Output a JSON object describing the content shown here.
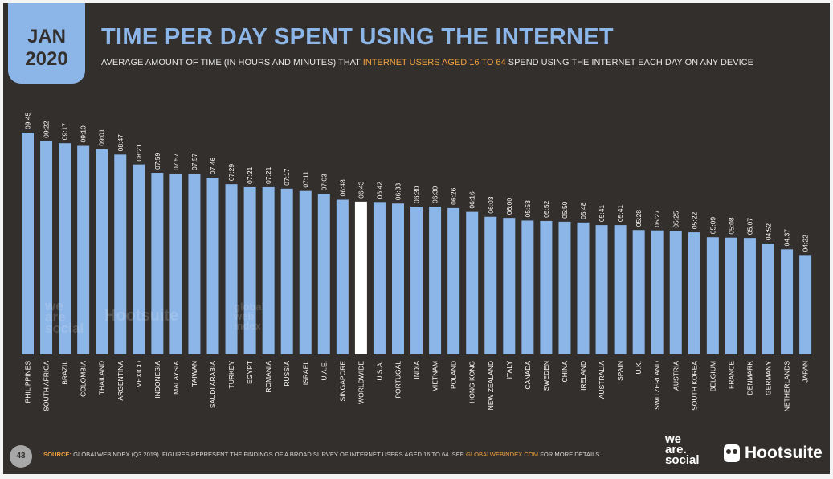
{
  "header": {
    "date_line1": "JAN",
    "date_line2": "2020",
    "title": "TIME PER DAY SPENT USING THE INTERNET",
    "subtitle_pre": "AVERAGE AMOUNT OF TIME (IN HOURS AND MINUTES) THAT ",
    "subtitle_highlight": "INTERNET USERS AGED 16 TO 64",
    "subtitle_post": " SPEND USING THE INTERNET EACH DAY ON ANY DEVICE"
  },
  "colors": {
    "background": "#322f2c",
    "bar": "#8cb5e8",
    "highlight_bar": "#ffffff",
    "accent": "#f0a03c",
    "text": "#e6e6e6"
  },
  "chart_data": {
    "type": "bar",
    "title": "TIME PER DAY SPENT USING THE INTERNET",
    "unit": "hours:minutes",
    "ylim_minutes": [
      0,
      600
    ],
    "categories": [
      "PHILIPPINES",
      "SOUTH AFRICA",
      "BRAZIL",
      "COLOMBIA",
      "THAILAND",
      "ARGENTINA",
      "MEXICO",
      "INDONESIA",
      "MALAYSIA",
      "TAIWAN",
      "SAUDI ARABIA",
      "TURKEY",
      "EGYPT",
      "ROMANIA",
      "RUSSIA",
      "ISRAEL",
      "U.A.E.",
      "SINGAPORE",
      "WORLDWIDE",
      "U.S.A.",
      "PORTUGAL",
      "INDIA",
      "VIETNAM",
      "POLAND",
      "HONG KONG",
      "NEW ZEALAND",
      "ITALY",
      "CANADA",
      "SWEDEN",
      "CHINA",
      "IRELAND",
      "AUSTRALIA",
      "SPAIN",
      "U.K.",
      "SWITZERLAND",
      "AUSTRIA",
      "SOUTH KOREA",
      "BELGIUM",
      "FRANCE",
      "DENMARK",
      "GERMANY",
      "NETHERLANDS",
      "JAPAN"
    ],
    "labels": [
      "09:45",
      "09:22",
      "09:17",
      "09:10",
      "09:01",
      "08:47",
      "08:21",
      "07:59",
      "07:57",
      "07:57",
      "07:46",
      "07:29",
      "07:21",
      "07:21",
      "07:17",
      "07:11",
      "07:03",
      "06:48",
      "06:43",
      "06:42",
      "06:38",
      "06:30",
      "06:30",
      "06:26",
      "06:16",
      "06:03",
      "06:00",
      "05:53",
      "05:52",
      "05:50",
      "05:48",
      "05:41",
      "05:41",
      "05:28",
      "05:27",
      "05:25",
      "05:22",
      "05:09",
      "05:08",
      "05:07",
      "04:52",
      "04:37",
      "04:22"
    ],
    "values_minutes": [
      585,
      562,
      557,
      550,
      541,
      527,
      501,
      479,
      477,
      477,
      466,
      449,
      441,
      441,
      437,
      431,
      423,
      408,
      403,
      402,
      398,
      390,
      390,
      386,
      376,
      363,
      360,
      353,
      352,
      350,
      348,
      341,
      341,
      328,
      327,
      325,
      322,
      309,
      308,
      307,
      292,
      277,
      262
    ],
    "highlight": "WORLDWIDE"
  },
  "watermarks": {
    "ws_line1": "we",
    "ws_line2": "are",
    "ws_line3": "social",
    "hootsuite": "Hootsuite",
    "gwi_line1": "global",
    "gwi_line2": "web",
    "gwi_line3": "index"
  },
  "footer": {
    "page_number": "43",
    "source_label": "SOURCE:",
    "source_text": " GLOBALWEBINDEX (Q3 2019). FIGURES REPRESENT THE FINDINGS OF A BROAD SURVEY OF INTERNET USERS AGED  16 TO 64. SEE ",
    "source_link": "GLOBALWEBINDEX.COM",
    "source_end": " FOR MORE DETAILS.",
    "logo_ws_line1": "we",
    "logo_ws_line2": "are.",
    "logo_ws_line3": "social",
    "logo_hootsuite": "Hootsuite"
  }
}
